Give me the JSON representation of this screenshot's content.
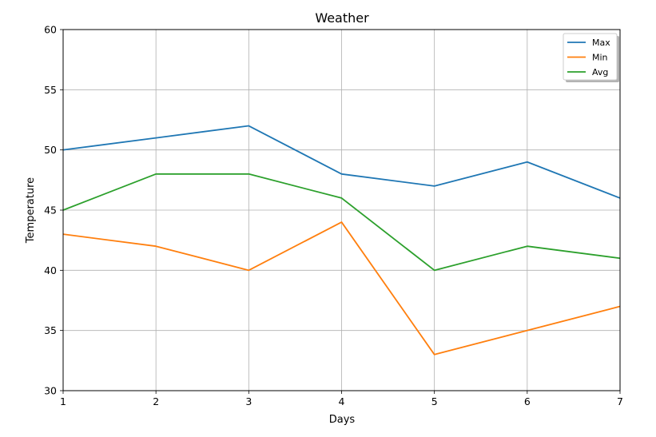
{
  "chart_data": {
    "type": "line",
    "title": "Weather",
    "xlabel": "Days",
    "ylabel": "Temperature",
    "x": [
      1,
      2,
      3,
      4,
      5,
      6,
      7
    ],
    "xlim": [
      1,
      7
    ],
    "ylim": [
      30,
      60
    ],
    "xticks": [
      "1",
      "2",
      "3",
      "4",
      "5",
      "6",
      "7"
    ],
    "yticks": [
      "30",
      "35",
      "40",
      "45",
      "50",
      "55",
      "60"
    ],
    "grid": true,
    "legend_position": "top-right",
    "series": [
      {
        "name": "Max",
        "color": "#1f77b4",
        "values": [
          50,
          51,
          52,
          48,
          47,
          49,
          46
        ]
      },
      {
        "name": "Min",
        "color": "#ff7f0e",
        "values": [
          43,
          42,
          40,
          44,
          33,
          35,
          37
        ]
      },
      {
        "name": "Avg",
        "color": "#2ca02c",
        "values": [
          45,
          48,
          48,
          46,
          40,
          42,
          41
        ]
      }
    ]
  }
}
